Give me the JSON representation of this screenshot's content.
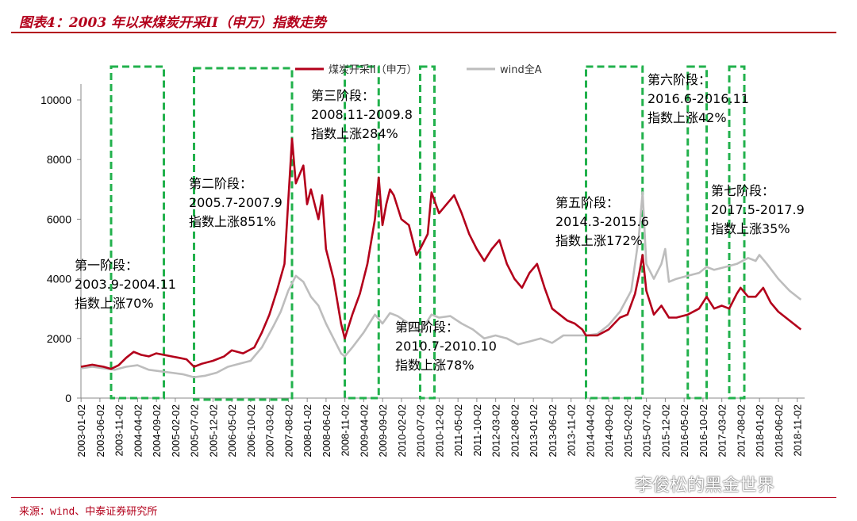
{
  "header": {
    "title": "图表4：2003 年以来煤炭开采II（申万）指数走势",
    "source": "来源：wind、中泰证券研究所",
    "watermark": "李俊松的黑金世界"
  },
  "colors": {
    "coal": "#b3001b",
    "winda": "#bdbdbd",
    "box": "#22b14c",
    "title": "#b3001b"
  },
  "chart_data": {
    "type": "line",
    "ylim": [
      0,
      10000
    ],
    "yticks": [
      0,
      2000,
      4000,
      6000,
      8000,
      10000
    ],
    "xticks": [
      "2003-01-02",
      "2003-06-02",
      "2003-11-02",
      "2004-04-02",
      "2004-09-02",
      "2005-02-02",
      "2005-07-02",
      "2005-12-02",
      "2006-05-02",
      "2006-10-02",
      "2007-03-02",
      "2007-08-02",
      "2008-01-02",
      "2008-06-02",
      "2008-11-02",
      "2009-04-02",
      "2009-09-02",
      "2010-02-02",
      "2010-07-02",
      "2010-12-02",
      "2011-05-02",
      "2011-10-02",
      "2012-03-02",
      "2012-08-02",
      "2013-01-02",
      "2013-06-02",
      "2013-11-02",
      "2014-04-02",
      "2014-09-02",
      "2015-02-02",
      "2015-07-02",
      "2015-12-02",
      "2016-05-02",
      "2016-10-02",
      "2017-03-02",
      "2017-08-02",
      "2018-01-02",
      "2018-06-02",
      "2018-11-02"
    ],
    "x_start": "2003-01",
    "x_end": "2019-01",
    "legend": [
      {
        "name": "煤炭开采II（申万）",
        "series": "coal"
      },
      {
        "name": "wind全A",
        "series": "winda"
      }
    ],
    "series": [
      {
        "key": "coal",
        "name": "煤炭开采II（申万）",
        "points": [
          [
            "2003-01",
            1050
          ],
          [
            "2003-04",
            1120
          ],
          [
            "2003-07",
            1050
          ],
          [
            "2003-09",
            980
          ],
          [
            "2003-11",
            1100
          ],
          [
            "2004-01",
            1350
          ],
          [
            "2004-03",
            1550
          ],
          [
            "2004-05",
            1450
          ],
          [
            "2004-07",
            1400
          ],
          [
            "2004-09",
            1500
          ],
          [
            "2004-11",
            1450
          ],
          [
            "2005-01",
            1400
          ],
          [
            "2005-03",
            1350
          ],
          [
            "2005-05",
            1300
          ],
          [
            "2005-07",
            1050
          ],
          [
            "2005-09",
            1150
          ],
          [
            "2005-12",
            1250
          ],
          [
            "2006-03",
            1400
          ],
          [
            "2006-05",
            1600
          ],
          [
            "2006-08",
            1500
          ],
          [
            "2006-11",
            1700
          ],
          [
            "2007-01",
            2200
          ],
          [
            "2007-03",
            2800
          ],
          [
            "2007-05",
            3600
          ],
          [
            "2007-07",
            4500
          ],
          [
            "2007-09",
            8700
          ],
          [
            "2007-10",
            7200
          ],
          [
            "2007-12",
            7800
          ],
          [
            "2008-01",
            6500
          ],
          [
            "2008-02",
            7000
          ],
          [
            "2008-04",
            6000
          ],
          [
            "2008-05",
            6800
          ],
          [
            "2008-06",
            5000
          ],
          [
            "2008-08",
            4000
          ],
          [
            "2008-10",
            2500
          ],
          [
            "2008-11",
            2000
          ],
          [
            "2009-01",
            2800
          ],
          [
            "2009-03",
            3500
          ],
          [
            "2009-05",
            4500
          ],
          [
            "2009-07",
            6000
          ],
          [
            "2009-08",
            7400
          ],
          [
            "2009-09",
            5800
          ],
          [
            "2009-10",
            6500
          ],
          [
            "2009-11",
            7000
          ],
          [
            "2009-12",
            6800
          ],
          [
            "2010-02",
            6000
          ],
          [
            "2010-04",
            5800
          ],
          [
            "2010-06",
            4800
          ],
          [
            "2010-07",
            5000
          ],
          [
            "2010-09",
            5500
          ],
          [
            "2010-10",
            6900
          ],
          [
            "2010-12",
            6200
          ],
          [
            "2011-02",
            6500
          ],
          [
            "2011-04",
            6800
          ],
          [
            "2011-06",
            6200
          ],
          [
            "2011-08",
            5500
          ],
          [
            "2011-10",
            5000
          ],
          [
            "2011-12",
            4600
          ],
          [
            "2012-02",
            5000
          ],
          [
            "2012-04",
            5300
          ],
          [
            "2012-06",
            4500
          ],
          [
            "2012-08",
            4000
          ],
          [
            "2012-10",
            3700
          ],
          [
            "2012-12",
            4200
          ],
          [
            "2013-02",
            4500
          ],
          [
            "2013-04",
            3700
          ],
          [
            "2013-06",
            3000
          ],
          [
            "2013-08",
            2800
          ],
          [
            "2013-10",
            2600
          ],
          [
            "2013-12",
            2500
          ],
          [
            "2014-02",
            2300
          ],
          [
            "2014-03",
            2100
          ],
          [
            "2014-06",
            2100
          ],
          [
            "2014-09",
            2300
          ],
          [
            "2014-12",
            2700
          ],
          [
            "2015-02",
            2800
          ],
          [
            "2015-04",
            3500
          ],
          [
            "2015-05",
            4100
          ],
          [
            "2015-06",
            4800
          ],
          [
            "2015-07",
            3600
          ],
          [
            "2015-09",
            2800
          ],
          [
            "2015-11",
            3100
          ],
          [
            "2016-01",
            2700
          ],
          [
            "2016-03",
            2700
          ],
          [
            "2016-06",
            2800
          ],
          [
            "2016-09",
            3000
          ],
          [
            "2016-11",
            3400
          ],
          [
            "2017-01",
            3000
          ],
          [
            "2017-03",
            3100
          ],
          [
            "2017-05",
            3000
          ],
          [
            "2017-07",
            3500
          ],
          [
            "2017-08",
            3700
          ],
          [
            "2017-10",
            3400
          ],
          [
            "2017-12",
            3400
          ],
          [
            "2018-02",
            3700
          ],
          [
            "2018-04",
            3200
          ],
          [
            "2018-06",
            2900
          ],
          [
            "2018-08",
            2700
          ],
          [
            "2018-10",
            2500
          ],
          [
            "2018-12",
            2300
          ]
        ]
      },
      {
        "key": "winda",
        "name": "wind全A",
        "points": [
          [
            "2003-01",
            1000
          ],
          [
            "2003-04",
            1050
          ],
          [
            "2003-07",
            1000
          ],
          [
            "2003-10",
            950
          ],
          [
            "2004-01",
            1050
          ],
          [
            "2004-04",
            1100
          ],
          [
            "2004-07",
            950
          ],
          [
            "2004-10",
            900
          ],
          [
            "2005-01",
            850
          ],
          [
            "2005-04",
            800
          ],
          [
            "2005-07",
            700
          ],
          [
            "2005-10",
            750
          ],
          [
            "2006-01",
            850
          ],
          [
            "2006-04",
            1050
          ],
          [
            "2006-07",
            1150
          ],
          [
            "2006-10",
            1250
          ],
          [
            "2007-01",
            1700
          ],
          [
            "2007-04",
            2400
          ],
          [
            "2007-06",
            2900
          ],
          [
            "2007-08",
            3600
          ],
          [
            "2007-10",
            4100
          ],
          [
            "2007-12",
            3900
          ],
          [
            "2008-02",
            3400
          ],
          [
            "2008-04",
            3100
          ],
          [
            "2008-06",
            2500
          ],
          [
            "2008-08",
            2000
          ],
          [
            "2008-10",
            1500
          ],
          [
            "2008-11",
            1400
          ],
          [
            "2009-01",
            1700
          ],
          [
            "2009-04",
            2200
          ],
          [
            "2009-07",
            2800
          ],
          [
            "2009-09",
            2500
          ],
          [
            "2009-11",
            2850
          ],
          [
            "2010-01",
            2750
          ],
          [
            "2010-04",
            2500
          ],
          [
            "2010-07",
            2200
          ],
          [
            "2010-10",
            2800
          ],
          [
            "2010-12",
            2700
          ],
          [
            "2011-03",
            2750
          ],
          [
            "2011-06",
            2500
          ],
          [
            "2011-09",
            2300
          ],
          [
            "2011-12",
            2000
          ],
          [
            "2012-03",
            2100
          ],
          [
            "2012-06",
            2000
          ],
          [
            "2012-09",
            1800
          ],
          [
            "2012-12",
            1900
          ],
          [
            "2013-03",
            2000
          ],
          [
            "2013-06",
            1850
          ],
          [
            "2013-09",
            2100
          ],
          [
            "2013-12",
            2100
          ],
          [
            "2014-03",
            2100
          ],
          [
            "2014-06",
            2150
          ],
          [
            "2014-09",
            2450
          ],
          [
            "2014-12",
            2900
          ],
          [
            "2015-03",
            3600
          ],
          [
            "2015-05",
            5400
          ],
          [
            "2015-06",
            6900
          ],
          [
            "2015-07",
            4500
          ],
          [
            "2015-09",
            4000
          ],
          [
            "2015-11",
            4500
          ],
          [
            "2015-12",
            5000
          ],
          [
            "2016-01",
            3900
          ],
          [
            "2016-03",
            4000
          ],
          [
            "2016-06",
            4100
          ],
          [
            "2016-09",
            4200
          ],
          [
            "2016-11",
            4400
          ],
          [
            "2017-01",
            4300
          ],
          [
            "2017-04",
            4400
          ],
          [
            "2017-07",
            4500
          ],
          [
            "2017-10",
            4700
          ],
          [
            "2017-12",
            4600
          ],
          [
            "2018-01",
            4800
          ],
          [
            "2018-03",
            4500
          ],
          [
            "2018-06",
            4000
          ],
          [
            "2018-09",
            3600
          ],
          [
            "2018-12",
            3300
          ]
        ]
      }
    ],
    "annotations": [
      {
        "lines": [
          "第一阶段：",
          "2003.9-2004.11",
          "指数上涨70%"
        ],
        "start": "2003-09",
        "end": "2004-11"
      },
      {
        "lines": [
          "第二阶段：",
          "2005.7-2007.9",
          "指数上涨851%"
        ],
        "start": "2005-07",
        "end": "2007-09"
      },
      {
        "lines": [
          "第三阶段：",
          "2008.11-2009.8",
          "指数上涨284%"
        ],
        "start": "2008-11",
        "end": "2009-08"
      },
      {
        "lines": [
          "第四阶段：",
          "2010.7-2010.10",
          "指数上涨78%"
        ],
        "start": "2010-07",
        "end": "2010-10"
      },
      {
        "lines": [
          "第五阶段：",
          "2014.3-2015.6",
          "指数上涨172%"
        ],
        "start": "2014-03",
        "end": "2015-06"
      },
      {
        "lines": [
          "第六阶段：",
          "2016.6-2016.11",
          "指数上涨42%"
        ],
        "start": "2016-06",
        "end": "2016-11"
      },
      {
        "lines": [
          "第七阶段：",
          "2017.5-2017.9",
          "指数上涨35%"
        ],
        "start": "2017-05",
        "end": "2017-09"
      }
    ]
  }
}
